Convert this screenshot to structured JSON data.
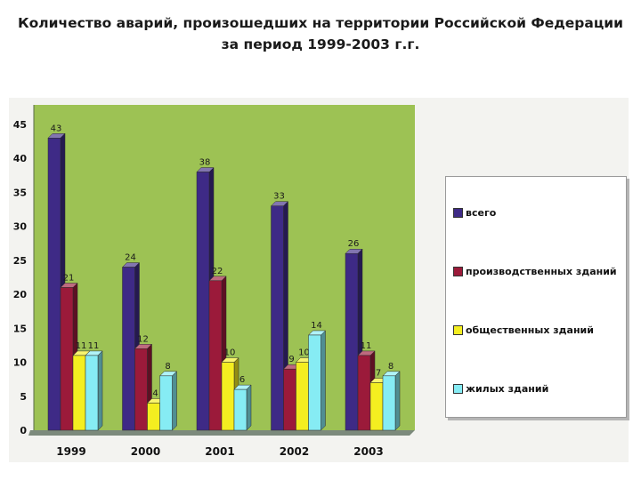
{
  "title": {
    "line1": "Количество аварий, произошедших на территории Российской Федерации",
    "line2": "за период 1999-2003 г.г."
  },
  "colors": {
    "plot_background": "#9dc254",
    "floor": "#7c8a7c"
  },
  "chart_data": {
    "type": "bar",
    "categories": [
      "1999",
      "2000",
      "2001",
      "2002",
      "2003"
    ],
    "series": [
      {
        "name": "всего",
        "values": [
          43,
          24,
          38,
          33,
          26
        ],
        "color": "#3e2a86"
      },
      {
        "name": "производственных зданий",
        "values": [
          21,
          12,
          22,
          9,
          11
        ],
        "color": "#9b1a3a"
      },
      {
        "name": "общественных зданий",
        "values": [
          11,
          4,
          10,
          10,
          7
        ],
        "color": "#f4ee20"
      },
      {
        "name": "жилых зданий",
        "values": [
          11,
          8,
          6,
          14,
          8
        ],
        "color": "#86ecf4"
      }
    ],
    "ylim": [
      0,
      45
    ],
    "yticks": [
      0,
      5,
      10,
      15,
      20,
      25,
      30,
      35,
      40,
      45
    ],
    "grid": false,
    "data_labels": true,
    "legend_position": "right",
    "style": "3d"
  }
}
